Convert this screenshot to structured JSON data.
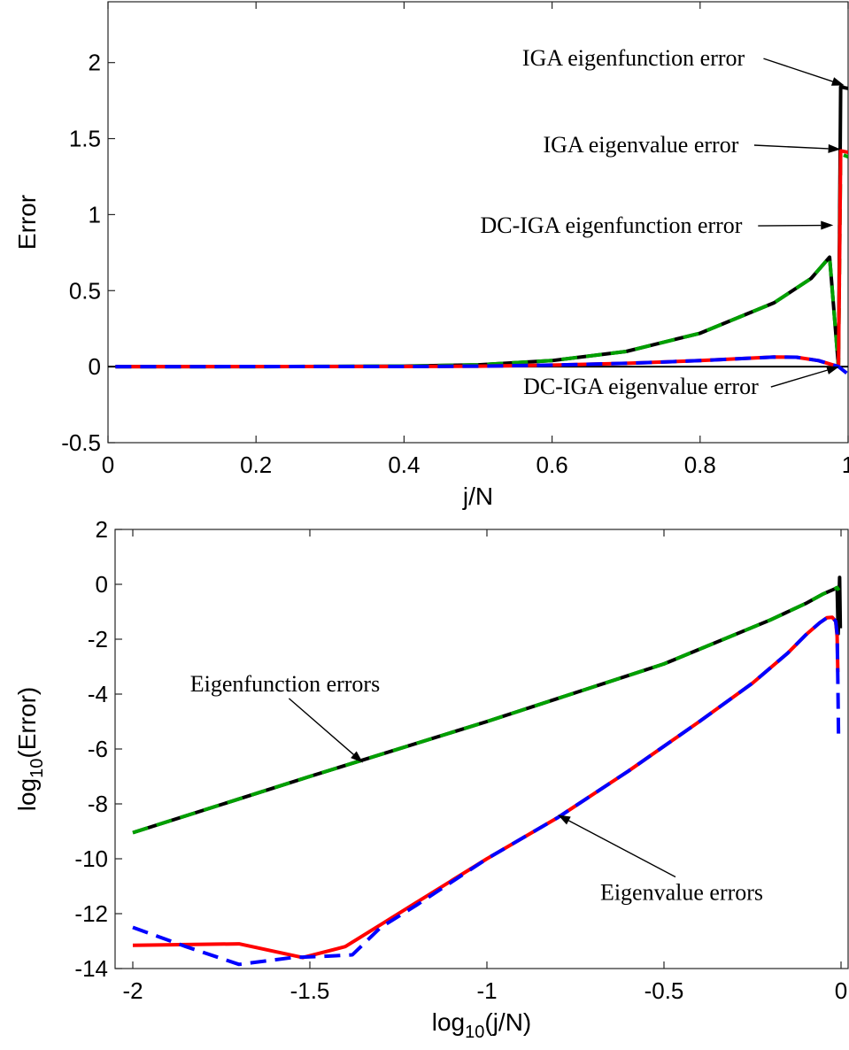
{
  "chart_data": [
    {
      "type": "line",
      "xlabel": "j/N",
      "ylabel": "Error",
      "xlim": [
        0,
        1
      ],
      "ylim": [
        -0.5,
        2.4
      ],
      "xticks": [
        {
          "value": 0,
          "label": "0"
        },
        {
          "value": 0.2,
          "label": "0.2"
        },
        {
          "value": 0.4,
          "label": "0.4"
        },
        {
          "value": 0.6,
          "label": "0.6"
        },
        {
          "value": 0.8,
          "label": "0.8"
        },
        {
          "value": 1,
          "label": "1"
        }
      ],
      "yticks": [
        {
          "value": -0.5,
          "label": "-0.5"
        },
        {
          "value": 0,
          "label": "0"
        },
        {
          "value": 0.5,
          "label": "0.5"
        },
        {
          "value": 1,
          "label": "1"
        },
        {
          "value": 1.5,
          "label": "1.5"
        },
        {
          "value": 2,
          "label": "2"
        }
      ],
      "grid": false,
      "zero_line": true,
      "series": [
        {
          "color": "#000000",
          "style": "solid",
          "x": [
            0.01,
            0.2,
            0.4,
            0.5,
            0.6,
            0.7,
            0.8,
            0.9,
            0.95,
            0.975,
            0.987,
            0.99,
            1.0
          ],
          "y": [
            0,
            0,
            0.003,
            0.012,
            0.04,
            0.1,
            0.22,
            0.42,
            0.58,
            0.72,
            0.0,
            1.84,
            1.83
          ]
        },
        {
          "color": "#00a000",
          "style": "dashed",
          "x": [
            0.01,
            0.2,
            0.4,
            0.5,
            0.6,
            0.7,
            0.8,
            0.9,
            0.95,
            0.975,
            0.987,
            0.99,
            1.0
          ],
          "y": [
            0,
            0,
            0.003,
            0.012,
            0.04,
            0.1,
            0.22,
            0.42,
            0.58,
            0.72,
            0.0,
            1.4,
            1.38
          ]
        },
        {
          "color": "#ff0000",
          "style": "solid",
          "x": [
            0.01,
            0.4,
            0.5,
            0.6,
            0.7,
            0.8,
            0.9,
            0.93,
            0.96,
            0.987,
            0.99,
            1.0
          ],
          "y": [
            0,
            0.001,
            0.003,
            0.01,
            0.022,
            0.04,
            0.063,
            0.062,
            0.04,
            0.0,
            1.42,
            1.41
          ]
        },
        {
          "color": "#0000ff",
          "style": "dashed",
          "x": [
            0.01,
            0.4,
            0.5,
            0.6,
            0.7,
            0.8,
            0.9,
            0.93,
            0.96,
            0.987,
            1.0
          ],
          "y": [
            0,
            0.001,
            0.003,
            0.01,
            0.022,
            0.04,
            0.063,
            0.062,
            0.04,
            0.0,
            -0.05
          ]
        }
      ],
      "annotations": [
        {
          "text": "IGA eigenfunction error",
          "tx": 0.71,
          "ty": 1.98,
          "ax": 0.995,
          "ay": 1.85
        },
        {
          "text": "IGA eigenvalue error",
          "tx": 0.72,
          "ty": 1.41,
          "ax": 0.99,
          "ay": 1.43
        },
        {
          "text": "DC-IGA eigenfunction error",
          "tx": 0.68,
          "ty": 0.88,
          "ax": 0.98,
          "ay": 0.93
        },
        {
          "text": "DC-IGA eigenvalue error",
          "tx": 0.72,
          "ty": -0.18,
          "ax": 0.988,
          "ay": 0.0
        }
      ]
    },
    {
      "type": "line",
      "xlabel": "log10(j/N)",
      "ylabel": "log10(Error)",
      "xlim": [
        -2.05,
        0.02
      ],
      "ylim": [
        -14,
        2
      ],
      "xticks": [
        {
          "value": -2,
          "label": "-2"
        },
        {
          "value": -1.5,
          "label": "-1.5"
        },
        {
          "value": -1,
          "label": "-1"
        },
        {
          "value": -0.5,
          "label": "-0.5"
        },
        {
          "value": 0,
          "label": "0"
        }
      ],
      "yticks": [
        {
          "value": -14,
          "label": "-14"
        },
        {
          "value": -12,
          "label": "-12"
        },
        {
          "value": -10,
          "label": "-10"
        },
        {
          "value": -8,
          "label": "-8"
        },
        {
          "value": -6,
          "label": "-6"
        },
        {
          "value": -4,
          "label": "-4"
        },
        {
          "value": -2,
          "label": "-2"
        },
        {
          "value": 0,
          "label": "0"
        },
        {
          "value": 2,
          "label": "2"
        }
      ],
      "grid": false,
      "series": [
        {
          "color": "#000000",
          "style": "solid",
          "x": [
            -2,
            -1.5,
            -1,
            -0.5,
            -0.2,
            -0.1,
            -0.05,
            -0.02,
            -0.011,
            -0.008,
            -0.004,
            -0.002
          ],
          "y": [
            -9.05,
            -7.0,
            -5.0,
            -2.9,
            -1.3,
            -0.7,
            -0.35,
            -0.18,
            -0.12,
            -1.8,
            0.25,
            -1.6
          ]
        },
        {
          "color": "#00a000",
          "style": "dashed",
          "x": [
            -2,
            -1.5,
            -1,
            -0.5,
            -0.2,
            -0.1,
            -0.05,
            -0.02,
            -0.011,
            -0.006
          ],
          "y": [
            -9.05,
            -7.0,
            -5.0,
            -2.9,
            -1.3,
            -0.7,
            -0.35,
            -0.18,
            -0.12,
            -0.22
          ]
        },
        {
          "color": "#ff0000",
          "style": "solid",
          "x": [
            -2,
            -1.7,
            -1.52,
            -1.4,
            -1.3,
            -1.2,
            -1.0,
            -0.8,
            -0.6,
            -0.4,
            -0.25,
            -0.15,
            -0.1,
            -0.06,
            -0.04,
            -0.025,
            -0.015,
            -0.011,
            -0.009
          ],
          "y": [
            -13.15,
            -13.1,
            -13.6,
            -13.2,
            -12.4,
            -11.6,
            -10.0,
            -8.5,
            -6.8,
            -5.0,
            -3.6,
            -2.5,
            -1.85,
            -1.4,
            -1.22,
            -1.2,
            -1.35,
            -1.9,
            -3.2
          ]
        },
        {
          "color": "#0000ff",
          "style": "dashed",
          "x": [
            -2,
            -1.85,
            -1.7,
            -1.55,
            -1.45,
            -1.38,
            -1.3,
            -1.2,
            -1.0,
            -0.8,
            -0.6,
            -0.4,
            -0.25,
            -0.15,
            -0.1,
            -0.06,
            -0.04,
            -0.025,
            -0.015,
            -0.011,
            -0.009,
            -0.007
          ],
          "y": [
            -12.5,
            -13.2,
            -13.85,
            -13.6,
            -13.55,
            -13.5,
            -12.5,
            -11.7,
            -10.0,
            -8.5,
            -6.8,
            -5.0,
            -3.6,
            -2.5,
            -1.85,
            -1.4,
            -1.22,
            -1.2,
            -1.35,
            -1.8,
            -3.5,
            -5.6
          ]
        }
      ],
      "annotations": [
        {
          "text": "Eigenfunction errors",
          "tx": -1.57,
          "ty": -3.9,
          "ax": -1.35,
          "ay": -6.5
        },
        {
          "text": "Eigenvalue errors",
          "tx": -0.45,
          "ty": -11.5,
          "ax": -0.8,
          "ay": -8.4
        }
      ]
    }
  ]
}
